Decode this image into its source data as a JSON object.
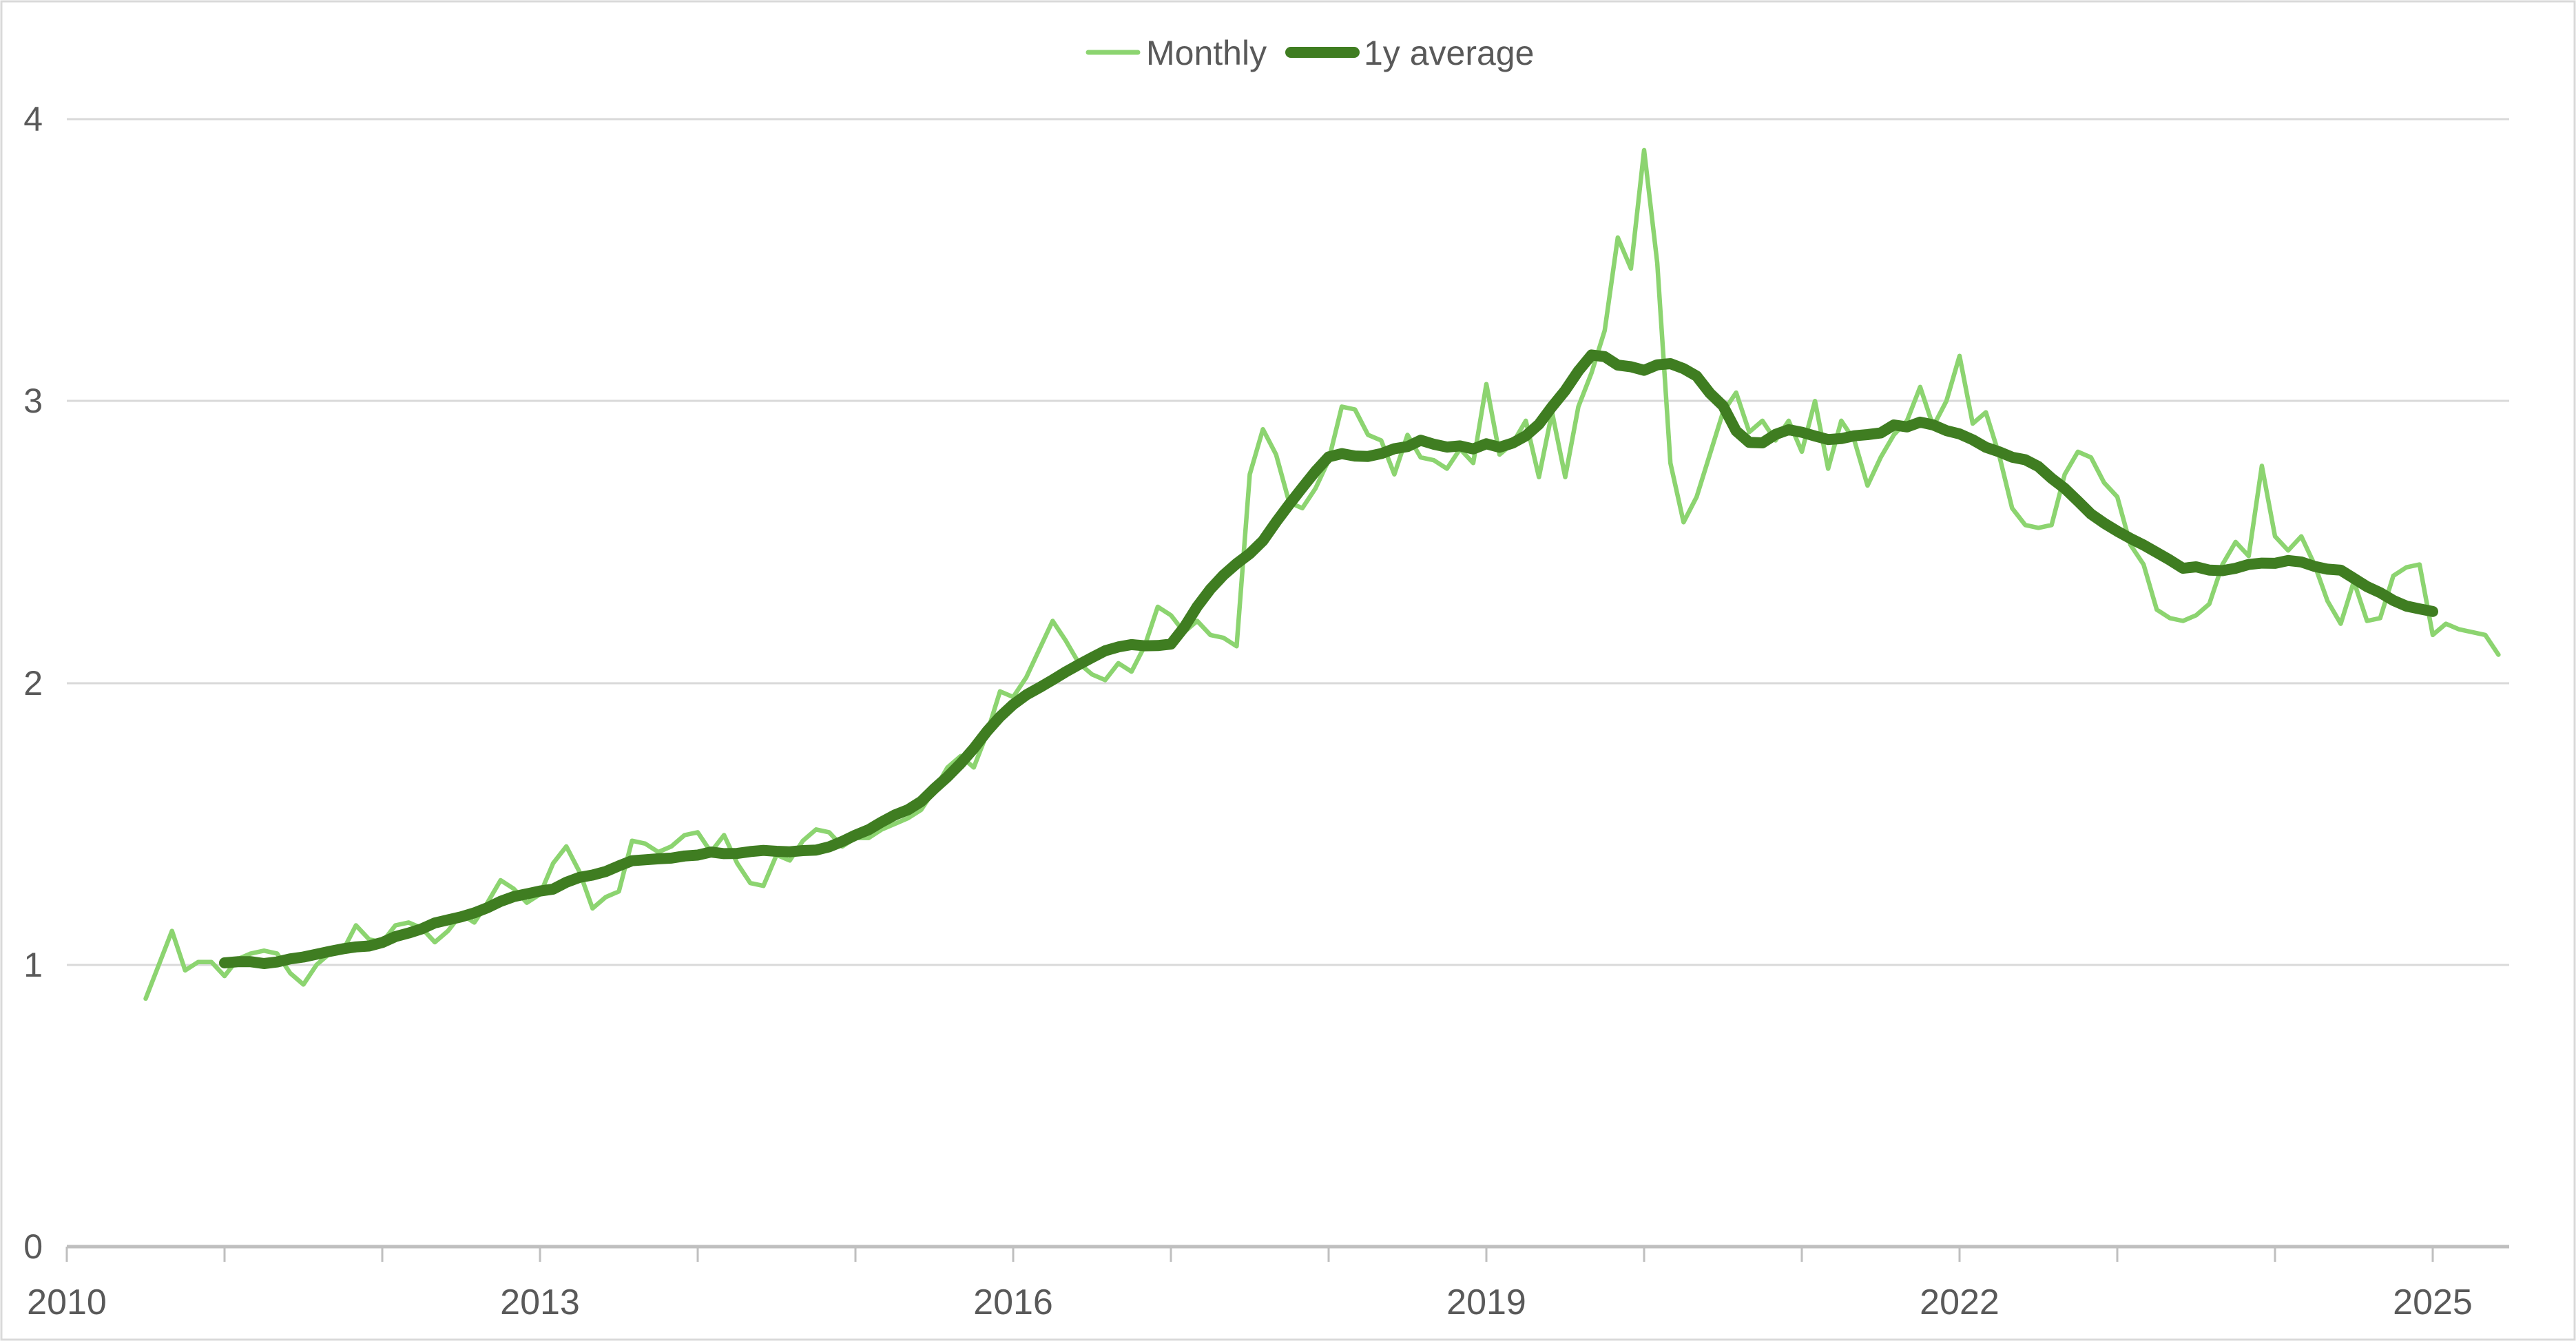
{
  "chart_data": {
    "type": "line",
    "title": "",
    "grid": "horizontal",
    "legend_position": "top-center",
    "x_axis": {
      "tick_labels": [
        "2010",
        "2013",
        "2016",
        "2019",
        "2022",
        "2025"
      ],
      "tick_years": [
        2010,
        2011,
        2012,
        2013,
        2014,
        2015,
        2016,
        2017,
        2018,
        2019,
        2020,
        2021,
        2022,
        2023,
        2024,
        2025
      ],
      "start_month": "2010-07",
      "end_month": "2025-06",
      "interval": "monthly"
    },
    "y_axis": {
      "tick_labels": [
        "0",
        "1",
        "2",
        "3",
        "4"
      ],
      "range": [
        0,
        4
      ]
    },
    "colors": {
      "gridline": "#D9D9D9",
      "axis_line": "#BFBFBF",
      "tick_text": "#595959",
      "frame": "#D9D9D9",
      "background": "#FFFFFF"
    },
    "series": [
      {
        "name": "Monthly",
        "color": "#8CD470",
        "line_width": 6.5,
        "values": [
          0.88,
          1.0,
          1.12,
          0.98,
          1.01,
          1.01,
          0.96,
          1.02,
          1.04,
          1.05,
          1.04,
          0.97,
          0.93,
          1.0,
          1.04,
          1.05,
          1.14,
          1.09,
          1.08,
          1.14,
          1.15,
          1.13,
          1.08,
          1.12,
          1.18,
          1.15,
          1.22,
          1.3,
          1.27,
          1.22,
          1.25,
          1.36,
          1.42,
          1.33,
          1.2,
          1.24,
          1.26,
          1.44,
          1.43,
          1.4,
          1.42,
          1.46,
          1.47,
          1.4,
          1.46,
          1.36,
          1.29,
          1.28,
          1.39,
          1.37,
          1.44,
          1.48,
          1.47,
          1.42,
          1.45,
          1.45,
          1.48,
          1.5,
          1.52,
          1.55,
          1.62,
          1.7,
          1.74,
          1.7,
          1.82,
          1.97,
          1.95,
          2.02,
          2.12,
          2.22,
          2.15,
          2.07,
          2.03,
          2.01,
          2.07,
          2.04,
          2.13,
          2.27,
          2.24,
          2.18,
          2.22,
          2.17,
          2.16,
          2.13,
          2.74,
          2.9,
          2.81,
          2.64,
          2.62,
          2.69,
          2.79,
          2.98,
          2.97,
          2.88,
          2.86,
          2.74,
          2.88,
          2.8,
          2.79,
          2.76,
          2.83,
          2.78,
          3.06,
          2.81,
          2.85,
          2.93,
          2.73,
          2.96,
          2.73,
          2.98,
          3.1,
          3.25,
          3.58,
          3.47,
          3.89,
          3.49,
          2.78,
          2.57,
          2.66,
          2.81,
          2.96,
          3.03,
          2.89,
          2.93,
          2.86,
          2.93,
          2.82,
          3.0,
          2.76,
          2.93,
          2.86,
          2.7,
          2.8,
          2.88,
          2.93,
          3.05,
          2.91,
          3.0,
          3.16,
          2.92,
          2.96,
          2.81,
          2.62,
          2.56,
          2.55,
          2.56,
          2.74,
          2.82,
          2.8,
          2.71,
          2.66,
          2.49,
          2.42,
          2.26,
          2.23,
          2.22,
          2.24,
          2.28,
          2.42,
          2.5,
          2.45,
          2.77,
          2.52,
          2.47,
          2.52,
          2.42,
          2.29,
          2.21,
          2.36,
          2.22,
          2.23,
          2.38,
          2.41,
          2.42,
          2.17,
          2.21,
          2.19,
          2.18,
          2.17,
          2.1
        ]
      },
      {
        "name": "1y average",
        "color": "#3F7D21",
        "line_width": 16,
        "derived_from": "Monthly",
        "method": "centered-12-month-mean"
      }
    ]
  }
}
